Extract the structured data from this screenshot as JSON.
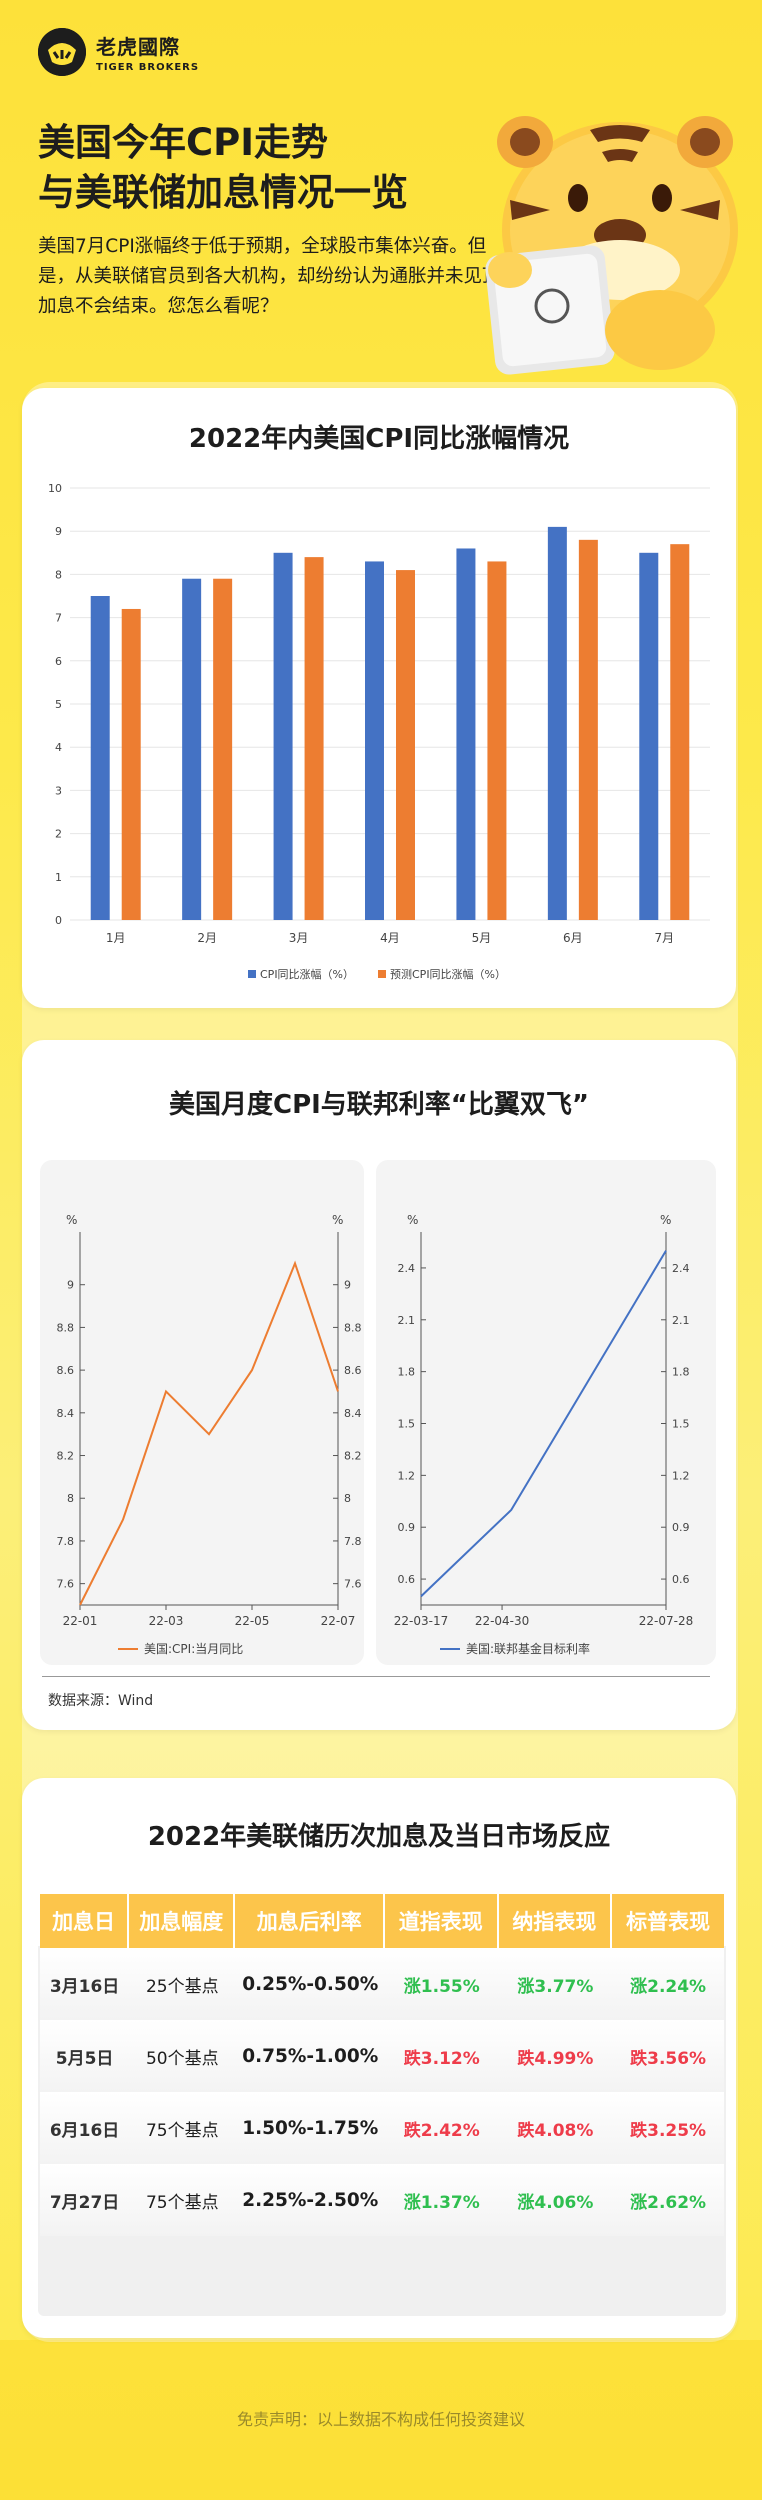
{
  "brand": {
    "name_cn": "老虎國際",
    "name_en": "TIGER BROKERS"
  },
  "header": {
    "title_line1": "美国今年CPI走势",
    "title_line2": "与美联储加息情况一览",
    "intro": "美国7月CPI涨幅终于低于预期，全球股市集体兴奋。但是，从美联储官员到各大机构，却纷纷认为通胀并未见顶，加息不会结束。您怎么看呢？"
  },
  "colors": {
    "blue": "#4472c4",
    "orange": "#ed7d31",
    "up": "#2fbf4f",
    "down": "#ee3c4a",
    "header_gold": "#fcc54b"
  },
  "chart1": {
    "title": "2022年内美国CPI同比涨幅情况",
    "chart_data": {
      "type": "bar",
      "categories": [
        "1月",
        "2月",
        "3月",
        "4月",
        "5月",
        "6月",
        "7月"
      ],
      "series": [
        {
          "name": "CPI同比涨幅（%）",
          "values": [
            7.5,
            7.9,
            8.5,
            8.3,
            8.6,
            9.1,
            8.5
          ]
        },
        {
          "name": "预测CPI同比涨幅（%）",
          "values": [
            7.2,
            7.9,
            8.4,
            8.1,
            8.3,
            8.8,
            8.7
          ]
        }
      ],
      "ylim": [
        0,
        10
      ],
      "yticks": [
        0,
        1,
        2,
        3,
        4,
        5,
        6,
        7,
        8,
        9,
        10
      ],
      "legend": "bottom"
    }
  },
  "chart2": {
    "title": "美国月度CPI与联邦利率“比翼双飞”",
    "source": "数据来源：Wind",
    "left": {
      "chart_data": {
        "type": "line",
        "unit_left": "%",
        "unit_right": "%",
        "x": [
          "22-01",
          "22-02",
          "22-03",
          "22-04",
          "22-05",
          "22-06",
          "22-07"
        ],
        "xticks": [
          "22-01",
          "22-03",
          "22-05",
          "22-07"
        ],
        "series": [
          {
            "name": "美国:CPI:当月同比",
            "values": [
              7.5,
              7.9,
              8.5,
              8.3,
              8.6,
              9.1,
              8.5
            ]
          }
        ],
        "ylim": [
          7.5,
          9.2
        ],
        "yticks": [
          "7.6",
          "7.8",
          "8",
          "8.2",
          "8.4",
          "8.6",
          "8.8",
          "9"
        ],
        "legend": "bottom"
      }
    },
    "right": {
      "chart_data": {
        "type": "line",
        "unit_left": "%",
        "unit_right": "%",
        "x": [
          "22-03-17",
          "22-05-05",
          "22-06-16",
          "22-07-28"
        ],
        "xticks": [
          "22-03-17",
          "22-04-30",
          "22-07-28"
        ],
        "series": [
          {
            "name": "美国:联邦基金目标利率",
            "values": [
              0.5,
              1.0,
              1.75,
              2.5
            ]
          }
        ],
        "ylim": [
          0.45,
          2.55
        ],
        "yticks": [
          "0.6",
          "0.9",
          "1.2",
          "1.5",
          "1.8",
          "2.1",
          "2.4"
        ],
        "legend": "bottom"
      }
    }
  },
  "table": {
    "title": "2022年美联储历次加息及当日市场反应",
    "headers": [
      "加息日",
      "加息幅度",
      "加息后利率",
      "道指表现",
      "纳指表现",
      "标普表现"
    ],
    "rows": [
      {
        "date": "3月16日",
        "size": "25个基点",
        "rate": "0.25%-0.50%",
        "dow": "涨1.55%",
        "nasdaq": "涨3.77%",
        "sp": "涨2.24%",
        "dir": [
          "up",
          "up",
          "up"
        ]
      },
      {
        "date": "5月5日",
        "size": "50个基点",
        "rate": "0.75%-1.00%",
        "dow": "跌3.12%",
        "nasdaq": "跌4.99%",
        "sp": "跌3.56%",
        "dir": [
          "down",
          "down",
          "down"
        ]
      },
      {
        "date": "6月16日",
        "size": "75个基点",
        "rate": "1.50%-1.75%",
        "dow": "跌2.42%",
        "nasdaq": "跌4.08%",
        "sp": "跌3.25%",
        "dir": [
          "down",
          "down",
          "down"
        ]
      },
      {
        "date": "7月27日",
        "size": "75个基点",
        "rate": "2.25%-2.50%",
        "dow": "涨1.37%",
        "nasdaq": "涨4.06%",
        "sp": "涨2.62%",
        "dir": [
          "up",
          "up",
          "up"
        ]
      }
    ]
  },
  "footer": {
    "disclaimer": "免责声明：以上数据不构成任何投资建议"
  }
}
